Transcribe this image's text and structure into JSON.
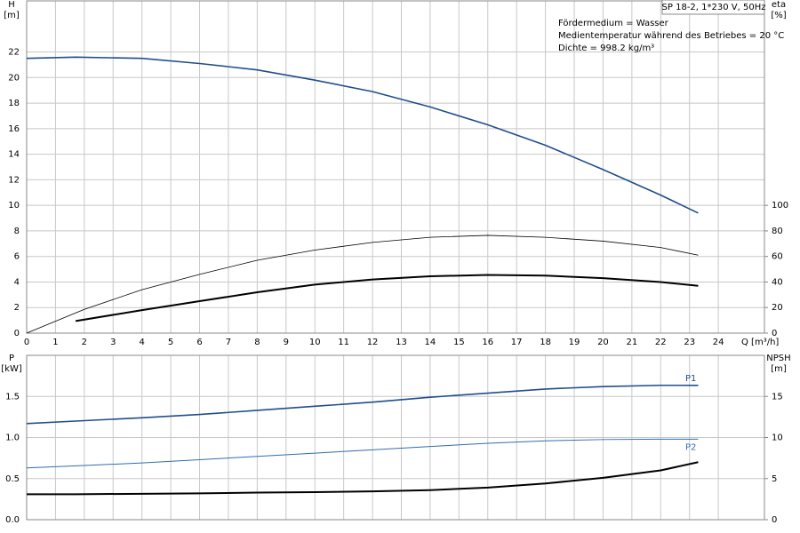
{
  "chart_data": [
    {
      "type": "line",
      "title": "SP 18-2, 1*230 V, 50Hz",
      "annotations": [
        "Fördermedium = Wasser",
        "Medientemperatur während des Betriebes = 20 °C",
        "Dichte = 998.2 kg/m³"
      ],
      "xlabel": "Q [m³/h]",
      "ylabel": "H",
      "yunit": "[m]",
      "y2label": "eta",
      "y2unit": "[%]",
      "xlim": [
        0,
        25.6
      ],
      "xticks": [
        0,
        1,
        2,
        3,
        4,
        5,
        6,
        7,
        8,
        9,
        10,
        11,
        12,
        13,
        14,
        15,
        16,
        17,
        18,
        19,
        20,
        21,
        22,
        23,
        24
      ],
      "ylim": [
        0,
        26
      ],
      "yticks": [
        0,
        2,
        4,
        6,
        8,
        10,
        12,
        14,
        16,
        18,
        20,
        22
      ],
      "y2lim": [
        0,
        260
      ],
      "y2ticks": [
        0,
        20,
        40,
        60,
        80,
        100
      ],
      "grid": true,
      "series": [
        {
          "color": "#1f4e8c",
          "x": [
            0,
            1.7,
            4,
            6,
            8,
            10,
            12,
            14,
            16,
            18,
            20,
            22,
            23.3
          ],
          "values": [
            21.5,
            21.6,
            21.5,
            21.1,
            20.6,
            19.8,
            18.9,
            17.7,
            16.3,
            14.7,
            12.8,
            10.8,
            9.4
          ]
        },
        {
          "color": "#000000",
          "axis": "y2",
          "x": [
            0,
            2,
            4,
            6,
            8,
            10,
            12,
            14,
            16,
            18,
            20,
            22,
            23.3
          ],
          "values": [
            0,
            18.6,
            34,
            46,
            57,
            65,
            71,
            75,
            76.5,
            75,
            72,
            67,
            61
          ]
        },
        {
          "color": "#000000",
          "axis": "y2",
          "x": [
            1.7,
            4,
            6,
            8,
            10,
            12,
            14,
            16,
            18,
            20,
            22,
            23.3
          ],
          "values": [
            9.5,
            18,
            25,
            32,
            38,
            42,
            44.5,
            45.5,
            45,
            43,
            40,
            37
          ]
        }
      ]
    },
    {
      "type": "line",
      "ylabel": "P",
      "yunit": "[kW]",
      "y2label": "NPSH",
      "y2unit": "[m]",
      "xlim": [
        0,
        25.6
      ],
      "ylim": [
        0,
        2
      ],
      "yticks": [
        {
          "value": 0,
          "label": "0.0"
        },
        0.5,
        {
          "value": 1,
          "label": "1.0"
        },
        1.5
      ],
      "y2lim": [
        0,
        20
      ],
      "y2ticks": [
        0,
        5,
        10,
        15
      ],
      "grid": true,
      "series": [
        {
          "name": "P1",
          "color": "#1f4e8c",
          "x": [
            0,
            1.7,
            4,
            6,
            8,
            10,
            12,
            14,
            16,
            18,
            20,
            22,
            23.3
          ],
          "values": [
            1.17,
            1.2,
            1.24,
            1.28,
            1.33,
            1.38,
            1.43,
            1.49,
            1.54,
            1.59,
            1.62,
            1.635,
            1.635
          ]
        },
        {
          "name": "P2",
          "color": "#2f6db0",
          "x": [
            0,
            2,
            4,
            6,
            8,
            10,
            12,
            14,
            16,
            18,
            20,
            22,
            23.3
          ],
          "values": [
            0.63,
            0.66,
            0.69,
            0.73,
            0.77,
            0.81,
            0.85,
            0.89,
            0.93,
            0.96,
            0.975,
            0.98,
            0.98
          ]
        },
        {
          "color": "#000000",
          "axis": "y2",
          "x": [
            0,
            1.7,
            4,
            6,
            8,
            10,
            12,
            14,
            16,
            18,
            20,
            22,
            23.3
          ],
          "values": [
            3.1,
            3.1,
            3.15,
            3.2,
            3.3,
            3.35,
            3.45,
            3.6,
            3.9,
            4.4,
            5.1,
            6.0,
            7.0
          ]
        }
      ]
    }
  ]
}
